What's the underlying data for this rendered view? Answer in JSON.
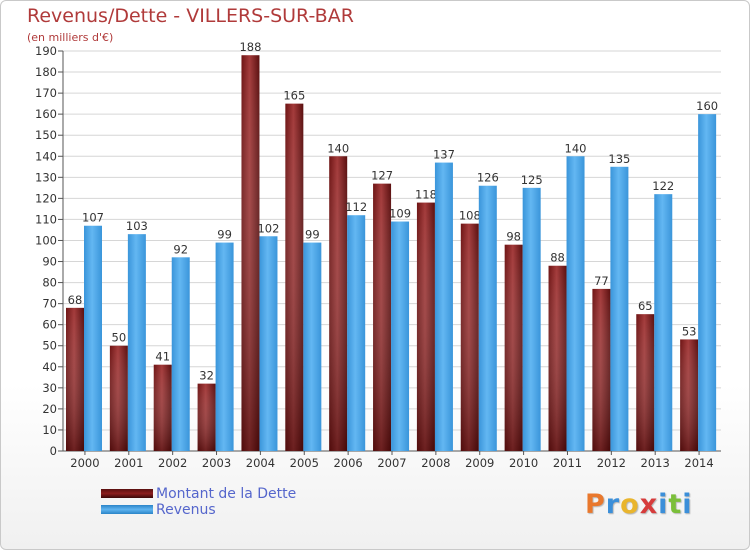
{
  "chart_data": {
    "type": "bar",
    "title": "Revenus/Dette - VILLERS-SUR-BAR",
    "subtitle": "(en milliers d'€)",
    "categories": [
      "2000",
      "2001",
      "2002",
      "2003",
      "2004",
      "2005",
      "2006",
      "2007",
      "2008",
      "2009",
      "2010",
      "2011",
      "2012",
      "2013",
      "2014"
    ],
    "series": [
      {
        "name": "Montant de la Dette",
        "color": "#8b1d1d",
        "values": [
          68,
          50,
          41,
          32,
          188,
          165,
          140,
          127,
          118,
          108,
          98,
          88,
          77,
          65,
          53
        ]
      },
      {
        "name": "Revenus",
        "color": "#4da6e8",
        "values": [
          107,
          103,
          92,
          99,
          102,
          99,
          112,
          109,
          137,
          126,
          125,
          140,
          135,
          122,
          160
        ]
      }
    ],
    "ylim": [
      0,
      190
    ],
    "ytick_step": 10,
    "yticks": [
      "0",
      "10",
      "20",
      "30",
      "40",
      "50",
      "60",
      "70",
      "80",
      "90",
      "100",
      "110",
      "120",
      "130",
      "140",
      "150",
      "160",
      "170",
      "180",
      "190"
    ],
    "grid": true,
    "legend_position": "bottom-left"
  },
  "branding": {
    "logo_letters": [
      "P",
      "r",
      "o",
      "x",
      "i",
      "t",
      "i"
    ],
    "logo_colors": [
      "#e9782d",
      "#3b8fd9",
      "#e9b52d",
      "#d63b3b",
      "#3b8fd9",
      "#7bbf3a",
      "#3b8fd9"
    ]
  }
}
